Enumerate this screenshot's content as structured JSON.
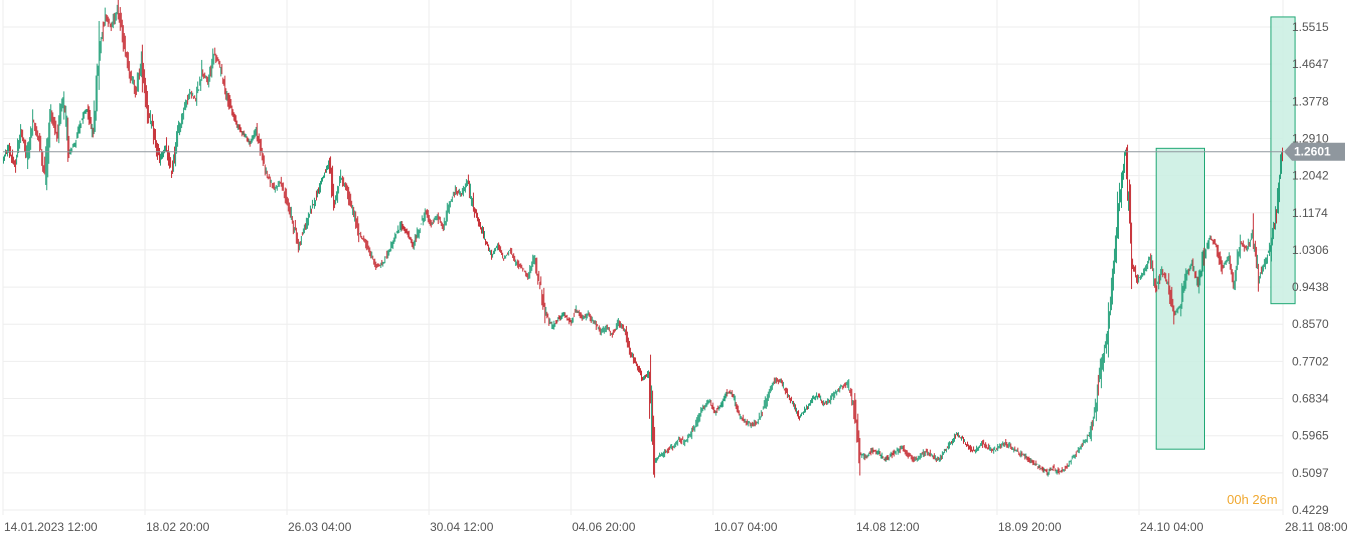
{
  "chart_data": {
    "type": "candlestick",
    "y_ticks": [
      "1.5515",
      "1.4647",
      "1.3778",
      "1.2910",
      "1.2042",
      "1.1174",
      "1.0306",
      "0.9438",
      "0.8570",
      "0.7702",
      "0.6834",
      "0.5965",
      "0.5097",
      "0.4229"
    ],
    "ylim": [
      0.4229,
      1.5965
    ],
    "x_ticks": [
      "14.01.2023  12:00",
      "18.02  20:00",
      "26.03  04:00",
      "30.04  12:00",
      "04.06  20:00",
      "10.07  04:00",
      "14.08  12:00",
      "18.09  20:00",
      "24.10  04:00",
      "28.11  08:00"
    ],
    "current_price": "1.2601",
    "price_series": [
      1.24,
      1.27,
      1.22,
      1.31,
      1.25,
      1.33,
      1.29,
      1.21,
      1.35,
      1.3,
      1.38,
      1.26,
      1.28,
      1.33,
      1.36,
      1.3,
      1.5,
      1.58,
      1.55,
      1.6,
      1.52,
      1.45,
      1.4,
      1.47,
      1.36,
      1.3,
      1.24,
      1.27,
      1.21,
      1.3,
      1.36,
      1.4,
      1.38,
      1.45,
      1.42,
      1.49,
      1.46,
      1.4,
      1.35,
      1.32,
      1.3,
      1.28,
      1.31,
      1.25,
      1.2,
      1.17,
      1.19,
      1.15,
      1.1,
      1.04,
      1.08,
      1.12,
      1.16,
      1.2,
      1.23,
      1.14,
      1.2,
      1.17,
      1.12,
      1.07,
      1.05,
      1.02,
      0.99,
      1.0,
      1.03,
      1.06,
      1.09,
      1.07,
      1.04,
      1.08,
      1.12,
      1.09,
      1.11,
      1.08,
      1.14,
      1.17,
      1.16,
      1.19,
      1.13,
      1.09,
      1.05,
      1.02,
      1.04,
      1.01,
      1.03,
      1.0,
      0.99,
      0.97,
      1.01,
      0.95,
      0.88,
      0.85,
      0.87,
      0.88,
      0.86,
      0.89,
      0.87,
      0.88,
      0.86,
      0.84,
      0.85,
      0.83,
      0.86,
      0.84,
      0.79,
      0.76,
      0.73,
      0.74,
      0.54,
      0.55,
      0.56,
      0.57,
      0.59,
      0.58,
      0.6,
      0.63,
      0.66,
      0.68,
      0.65,
      0.67,
      0.7,
      0.69,
      0.64,
      0.63,
      0.62,
      0.63,
      0.66,
      0.7,
      0.73,
      0.72,
      0.69,
      0.67,
      0.64,
      0.66,
      0.68,
      0.69,
      0.67,
      0.68,
      0.7,
      0.71,
      0.72,
      0.66,
      0.55,
      0.55,
      0.56,
      0.56,
      0.54,
      0.55,
      0.56,
      0.57,
      0.55,
      0.54,
      0.55,
      0.56,
      0.55,
      0.54,
      0.56,
      0.58,
      0.6,
      0.59,
      0.57,
      0.56,
      0.58,
      0.57,
      0.56,
      0.57,
      0.58,
      0.57,
      0.56,
      0.55,
      0.54,
      0.53,
      0.52,
      0.51,
      0.52,
      0.51,
      0.52,
      0.54,
      0.56,
      0.58,
      0.6,
      0.66,
      0.76,
      0.84,
      1.0,
      1.15,
      1.26,
      1.0,
      0.96,
      0.98,
      1.01,
      0.94,
      0.98,
      0.95,
      0.88,
      0.9,
      0.97,
      1.0,
      0.95,
      1.02,
      1.06,
      1.04,
      0.99,
      1.01,
      0.95,
      1.05,
      1.03,
      1.07,
      0.96,
      1.0,
      1.04,
      1.12,
      1.26
    ],
    "highlight_ranges": [
      {
        "start": 191,
        "end": 199,
        "low": 0.565,
        "high": 1.268
      },
      {
        "start": 210,
        "end": 214,
        "low": 0.905,
        "high": 1.575
      }
    ],
    "colors": {
      "up": "#26a17b",
      "down": "#c62e35",
      "price_line": "#8f979e",
      "price_badge": "#8f979e",
      "highlight_fill": "#c9efe2",
      "highlight_stroke": "#1fa774",
      "grid": "#eeeeee"
    }
  },
  "timer": {
    "hours": "00h",
    "minutes": "26m"
  }
}
